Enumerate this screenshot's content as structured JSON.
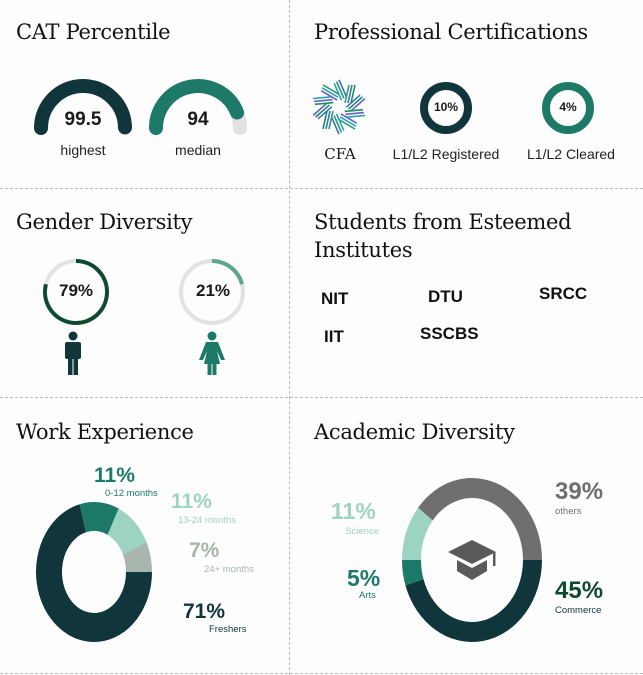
{
  "colors": {
    "dark": "#10353a",
    "teal": "#1e7a68",
    "mint": "#9dd3c2",
    "sage": "#a8b5ad",
    "gray": "#6f6f6f",
    "track": "#e2e2e2",
    "green_dark": "#0e4a30",
    "green_light": "#5fa68d"
  },
  "cat": {
    "title": "CAT Percentile",
    "gauges": [
      {
        "value": "99.5",
        "fraction": 0.995,
        "label": "highest"
      },
      {
        "value": "94",
        "fraction": 0.94,
        "label": "median"
      }
    ]
  },
  "certs": {
    "title": "Professional Certifications",
    "logo_text": "CFA",
    "items": [
      {
        "value": "10%",
        "label": "L1/L2 Registered"
      },
      {
        "value": "4%",
        "label": "L1/L2 Cleared"
      }
    ]
  },
  "gender": {
    "title": "Gender Diversity",
    "items": [
      {
        "value": "79%",
        "fraction": 0.79,
        "icon": "male-icon"
      },
      {
        "value": "21%",
        "fraction": 0.21,
        "icon": "female-icon"
      }
    ]
  },
  "institutes": {
    "title_line1": "Students from Esteemed",
    "title_line2": "Institutes",
    "names": [
      "NIT",
      "DTU",
      "SRCC",
      "IIT",
      "SSCBS"
    ]
  },
  "work": {
    "title": "Work Experience"
  },
  "academic": {
    "title": "Academic Diversity"
  },
  "chart_data": [
    {
      "type": "pie",
      "title": "Work Experience",
      "categories": [
        "Freshers",
        "0-12 months",
        "13-24 months",
        "24+ months"
      ],
      "values": [
        71,
        11,
        11,
        7
      ],
      "labels": [
        "71%",
        "11%",
        "11%",
        "7%"
      ]
    },
    {
      "type": "pie",
      "title": "Academic Diversity",
      "categories": [
        "Commerce",
        "Arts",
        "Science",
        "others"
      ],
      "values": [
        45,
        5,
        11,
        39
      ],
      "labels": [
        "45%",
        "5%",
        "11%",
        "39%"
      ]
    }
  ]
}
